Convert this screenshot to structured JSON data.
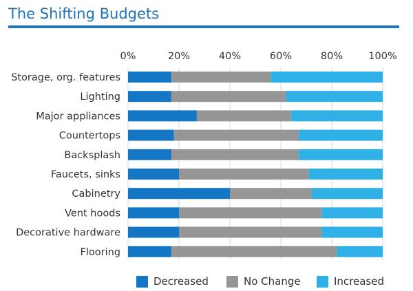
{
  "title": "The Shifting Budgets",
  "colors": {
    "title": "#1f73b7",
    "rule": "#1f73b7",
    "decreased": "#1477c6",
    "no_change": "#969696",
    "increased": "#2fb0e6",
    "gridline": "#d8d8d8",
    "text": "#333333"
  },
  "chart_data": {
    "type": "bar",
    "orientation": "horizontal",
    "stacked": true,
    "title": "The Shifting Budgets",
    "xlabel": "",
    "ylabel": "",
    "xlim": [
      0,
      100
    ],
    "x_ticks": [
      "0%",
      "20%",
      "40%",
      "60%",
      "80%",
      "100%"
    ],
    "x_axis_position": "top",
    "grid": true,
    "legend_position": "bottom",
    "categories": [
      "Storage, org. features",
      "Lighting",
      "Major appliances",
      "Countertops",
      "Backsplash",
      "Faucets, sinks",
      "Cabinetry",
      "Vent hoods",
      "Decorative hardware",
      "Flooring"
    ],
    "series": [
      {
        "name": "Decreased",
        "color": "#1477c6",
        "values": [
          17,
          17,
          27,
          18,
          17,
          20,
          40,
          20,
          20,
          17
        ]
      },
      {
        "name": "No Change",
        "color": "#969696",
        "values": [
          39,
          45,
          37,
          49,
          50,
          51,
          32,
          56,
          56,
          65
        ]
      },
      {
        "name": "Increased",
        "color": "#2fb0e6",
        "values": [
          44,
          38,
          36,
          33,
          33,
          29,
          28,
          24,
          24,
          18
        ]
      }
    ]
  }
}
